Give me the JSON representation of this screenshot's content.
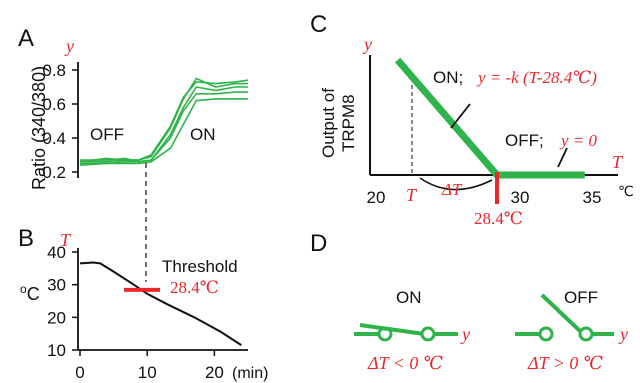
{
  "colors": {
    "green": "#2fb34a",
    "red": "#e8282b",
    "black": "#111111"
  },
  "panelA": {
    "letter": "A",
    "y_symbol": "y",
    "ylabel": "Ratio (340/380)",
    "off_label": "OFF",
    "on_label": "ON"
  },
  "panelB": {
    "letter": "B",
    "t_symbol": "T",
    "ylabel": "oC",
    "xlabel": "(min)",
    "threshold_label": "Threshold",
    "threshold_value": "28.4℃"
  },
  "panelC": {
    "letter": "C",
    "y_symbol": "y",
    "ylabel_line1": "Output of",
    "ylabel_line2": "TRPM8",
    "on_eq_prefix": "ON;",
    "on_eq": "y = -k (T-28.4℃)",
    "off_eq_prefix": "OFF;",
    "off_eq": "y = 0",
    "t_axis_symbol": "T",
    "t_marker": "T",
    "delta_t": "ΔT",
    "threshold_value": "28.4℃",
    "unit": "℃"
  },
  "panelD": {
    "letter": "D",
    "on_label": "ON",
    "off_label": "OFF",
    "y_symbol": "y",
    "on_condition": "ΔT < 0 ℃",
    "off_condition": "ΔT > 0 ℃"
  },
  "chart_data": [
    {
      "type": "line",
      "panel": "A",
      "ylabel": "Ratio (340/380)",
      "yticks": [
        0.2,
        0.4,
        0.6,
        0.8
      ],
      "ylim": [
        0.2,
        0.8
      ],
      "series": [
        {
          "x": [
            0,
            4,
            7,
            9,
            11,
            14,
            16,
            18,
            21,
            24,
            26
          ],
          "values": [
            0.27,
            0.27,
            0.28,
            0.26,
            0.27,
            0.42,
            0.58,
            0.7,
            0.68,
            0.7,
            0.7
          ]
        },
        {
          "x": [
            0,
            4,
            7,
            9,
            11,
            14,
            16,
            18,
            21,
            24,
            26
          ],
          "values": [
            0.26,
            0.26,
            0.27,
            0.27,
            0.29,
            0.46,
            0.63,
            0.75,
            0.7,
            0.72,
            0.72
          ]
        },
        {
          "x": [
            0,
            4,
            7,
            9,
            11,
            14,
            16,
            18,
            21,
            24,
            26
          ],
          "values": [
            0.25,
            0.25,
            0.26,
            0.26,
            0.27,
            0.4,
            0.56,
            0.66,
            0.66,
            0.67,
            0.67
          ]
        },
        {
          "x": [
            0,
            4,
            7,
            9,
            11,
            14,
            16,
            18,
            21,
            24,
            26
          ],
          "values": [
            0.24,
            0.25,
            0.25,
            0.25,
            0.26,
            0.34,
            0.48,
            0.62,
            0.63,
            0.63,
            0.63
          ]
        },
        {
          "x": [
            0,
            4,
            7,
            9,
            11,
            14,
            16,
            18,
            21,
            24,
            26
          ],
          "values": [
            0.26,
            0.28,
            0.27,
            0.27,
            0.3,
            0.47,
            0.64,
            0.73,
            0.72,
            0.73,
            0.74
          ]
        }
      ]
    },
    {
      "type": "line",
      "panel": "B",
      "ylabel": "oC",
      "xlabel": "(min)",
      "xticks": [
        0,
        10,
        20
      ],
      "yticks": [
        10,
        20,
        30,
        40
      ],
      "xlim": [
        0,
        25
      ],
      "ylim": [
        10,
        40
      ],
      "series": [
        {
          "x": [
            0,
            2,
            3,
            5,
            8,
            10,
            13,
            17,
            21,
            24
          ],
          "values": [
            36.5,
            36.8,
            36.5,
            34,
            30,
            27.2,
            24,
            20,
            15.5,
            11.5
          ]
        }
      ],
      "threshold": 28.4
    },
    {
      "type": "line",
      "panel": "C",
      "xticks": [
        20,
        30,
        35
      ],
      "xlim": [
        19,
        36
      ],
      "series": [
        {
          "x": [
            21.5,
            28.4,
            34.5
          ],
          "values": [
            1.0,
            0,
            0
          ]
        }
      ],
      "threshold": 28.4
    }
  ]
}
